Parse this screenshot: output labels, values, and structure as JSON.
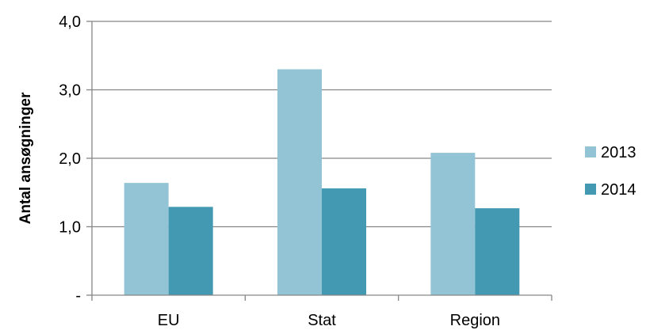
{
  "chart_data": {
    "type": "bar",
    "categories": [
      "EU",
      "Stat",
      "Region"
    ],
    "series": [
      {
        "name": "2013",
        "values": [
          1.64,
          3.3,
          2.08
        ],
        "color": "#93c4d6"
      },
      {
        "name": "2014",
        "values": [
          1.29,
          1.56,
          1.27
        ],
        "color": "#4299b1"
      }
    ],
    "title": "",
    "xlabel": "",
    "ylabel": "Antal ansøgninger",
    "ylim": [
      0,
      4
    ],
    "yticks": [
      0,
      1,
      2,
      3,
      4
    ],
    "ytick_labels": [
      "-",
      "1,0",
      "2,0",
      "3,0",
      "4,0"
    ],
    "grid": true,
    "legend_position": "right"
  }
}
